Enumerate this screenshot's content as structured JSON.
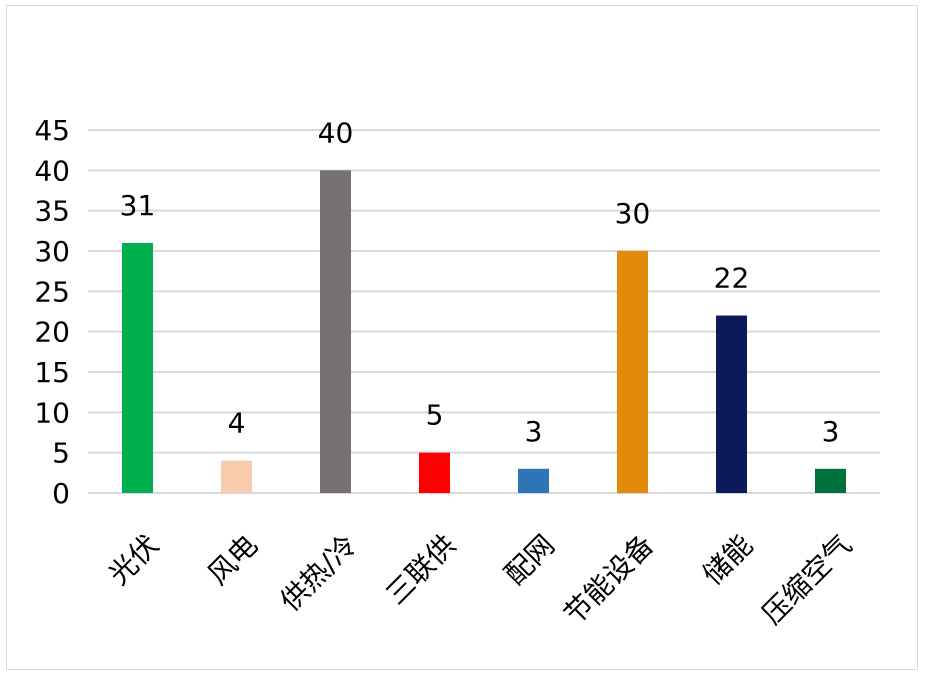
{
  "chart_data": {
    "type": "bar",
    "categories": [
      "光伏",
      "风电",
      "供热/冷",
      "三联供",
      "配网",
      "节能设备",
      "储能",
      "压缩空气"
    ],
    "values": [
      31,
      4,
      40,
      5,
      3,
      30,
      22,
      3
    ],
    "colors": [
      "#00b050",
      "#f8cbad",
      "#767171",
      "#ff0000",
      "#2e75b6",
      "#e38a0b",
      "#0c1a5c",
      "#00703c"
    ],
    "title": "",
    "xlabel": "",
    "ylabel": "",
    "ylim": [
      0,
      45
    ],
    "yticks": [
      0,
      5,
      10,
      15,
      20,
      25,
      30,
      35,
      40,
      45
    ],
    "grid": true,
    "data_labels": true
  }
}
